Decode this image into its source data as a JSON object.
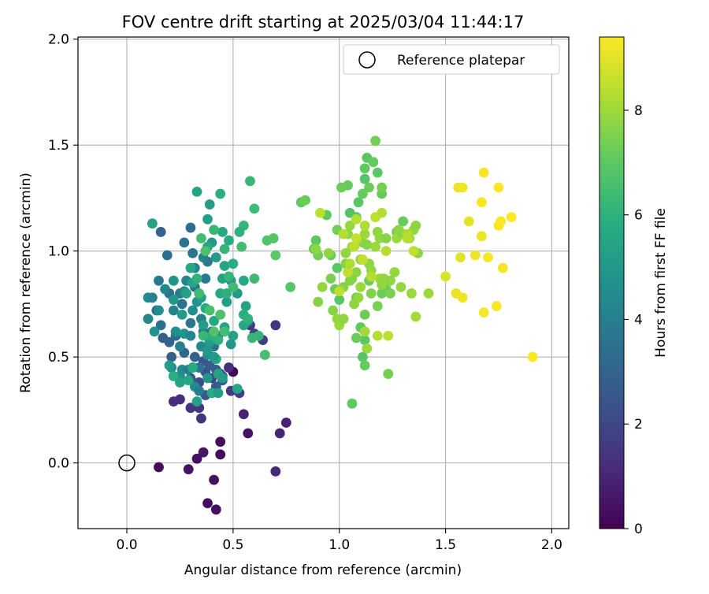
{
  "chart_data": {
    "type": "scatter",
    "title": "FOV centre drift starting at 2025/03/04 11:44:17",
    "xlabel": "Angular distance from reference (arcmin)",
    "ylabel": "Rotation from reference (arcmin)",
    "xlim": [
      -0.23,
      2.08
    ],
    "ylim": [
      -0.31,
      2.01
    ],
    "xticks": [
      0.0,
      0.5,
      1.0,
      1.5,
      2.0
    ],
    "xtick_labels": [
      "0.0",
      "0.5",
      "1.0",
      "1.5",
      "2.0"
    ],
    "yticks": [
      0.0,
      0.5,
      1.0,
      1.5,
      2.0
    ],
    "ytick_labels": [
      "0.0",
      "0.5",
      "1.0",
      "1.5",
      "2.0"
    ],
    "grid": true,
    "legend": {
      "placement": "top-right",
      "entries": [
        "Reference platepar"
      ]
    },
    "reference_point": {
      "x": 0.0,
      "y": 0.0,
      "label": "Reference platepar"
    },
    "colorbar": {
      "label": "Hours from first FF file",
      "range": [
        0,
        9.4
      ],
      "ticks": [
        0,
        2,
        4,
        6,
        8
      ],
      "tick_labels": [
        "0",
        "2",
        "4",
        "6",
        "8"
      ],
      "colormap": "viridis"
    },
    "points": [
      [
        0.15,
        -0.02,
        0.3
      ],
      [
        0.29,
        -0.03,
        0.5
      ],
      [
        0.33,
        0.02,
        0.4
      ],
      [
        0.36,
        0.05,
        0.6
      ],
      [
        0.41,
        -0.08,
        0.4
      ],
      [
        0.38,
        -0.19,
        0.3
      ],
      [
        0.42,
        -0.22,
        0.4
      ],
      [
        0.44,
        0.04,
        0.2
      ],
      [
        0.44,
        0.1,
        0.3
      ],
      [
        0.7,
        -0.04,
        1.1
      ],
      [
        0.57,
        0.14,
        0.5
      ],
      [
        0.72,
        0.14,
        1.0
      ],
      [
        0.75,
        0.19,
        0.9
      ],
      [
        0.55,
        0.23,
        0.9
      ],
      [
        0.5,
        0.43,
        0.1
      ],
      [
        0.22,
        0.29,
        1.2
      ],
      [
        0.25,
        0.3,
        1.3
      ],
      [
        0.3,
        0.26,
        1.5
      ],
      [
        0.34,
        0.26,
        1.5
      ],
      [
        0.35,
        0.21,
        1.4
      ],
      [
        0.48,
        0.45,
        1.3
      ],
      [
        0.49,
        0.34,
        1.6
      ],
      [
        0.53,
        0.33,
        1.7
      ],
      [
        0.7,
        0.65,
        1.5
      ],
      [
        0.64,
        0.58,
        1.8
      ],
      [
        0.6,
        0.61,
        1.9
      ],
      [
        0.58,
        0.65,
        1.6
      ],
      [
        0.37,
        0.43,
        2.4
      ],
      [
        0.4,
        0.4,
        2.0
      ],
      [
        0.44,
        0.42,
        2.2
      ],
      [
        0.45,
        0.41,
        2.6
      ],
      [
        0.45,
        0.39,
        2.5
      ],
      [
        0.31,
        0.45,
        2.3
      ],
      [
        0.34,
        0.38,
        2.1
      ],
      [
        0.37,
        0.32,
        2.5
      ],
      [
        0.42,
        0.36,
        2.7
      ],
      [
        0.39,
        0.46,
        2.8
      ],
      [
        0.42,
        0.44,
        2.8
      ],
      [
        0.3,
        0.4,
        2.6
      ],
      [
        0.36,
        0.48,
        2.5
      ],
      [
        0.16,
        1.09,
        3.0
      ],
      [
        0.3,
        1.11,
        3.3
      ],
      [
        0.27,
        1.04,
        3.6
      ],
      [
        0.19,
        0.98,
        3.5
      ],
      [
        0.31,
        0.99,
        3.7
      ],
      [
        0.15,
        0.86,
        3.8
      ],
      [
        0.2,
        0.8,
        3.4
      ],
      [
        0.25,
        0.8,
        3.9
      ],
      [
        0.14,
        0.72,
        3.3
      ],
      [
        0.16,
        0.65,
        3.5
      ],
      [
        0.17,
        0.59,
        2.9
      ],
      [
        0.2,
        0.57,
        3.0
      ],
      [
        0.23,
        0.6,
        3.2
      ],
      [
        0.21,
        0.5,
        2.9
      ],
      [
        0.27,
        0.52,
        3.2
      ],
      [
        0.32,
        0.5,
        3.0
      ],
      [
        0.34,
        0.45,
        3.6
      ],
      [
        0.38,
        0.55,
        3.3
      ],
      [
        0.4,
        0.62,
        3.4
      ],
      [
        0.36,
        0.62,
        3.9
      ],
      [
        0.3,
        0.66,
        3.8
      ],
      [
        0.26,
        0.75,
        3.6
      ],
      [
        0.32,
        0.83,
        3.7
      ],
      [
        0.37,
        0.87,
        3.9
      ],
      [
        0.38,
        0.95,
        3.8
      ],
      [
        0.41,
        0.55,
        3.5
      ],
      [
        0.43,
        0.6,
        3.8
      ],
      [
        0.1,
        0.78,
        4.5
      ],
      [
        0.12,
        0.78,
        4.2
      ],
      [
        0.13,
        0.62,
        4.8
      ],
      [
        0.1,
        0.68,
        4.4
      ],
      [
        0.15,
        0.72,
        4.6
      ],
      [
        0.18,
        0.82,
        4.3
      ],
      [
        0.22,
        0.86,
        4.9
      ],
      [
        0.22,
        0.72,
        4.2
      ],
      [
        0.23,
        0.62,
        4.7
      ],
      [
        0.25,
        0.55,
        4.1
      ],
      [
        0.27,
        0.61,
        4.9
      ],
      [
        0.3,
        0.6,
        4.3
      ],
      [
        0.31,
        0.72,
        4.6
      ],
      [
        0.33,
        0.76,
        4.8
      ],
      [
        0.35,
        0.68,
        4.1
      ],
      [
        0.35,
        0.55,
        4.4
      ],
      [
        0.38,
        0.51,
        4.7
      ],
      [
        0.27,
        0.81,
        4.5
      ],
      [
        0.28,
        0.86,
        4.3
      ],
      [
        0.32,
        0.92,
        4.1
      ],
      [
        0.36,
        0.97,
        4.2
      ],
      [
        0.26,
        0.44,
        4.4
      ],
      [
        0.29,
        0.44,
        4.1
      ],
      [
        0.32,
        0.36,
        4.6
      ],
      [
        0.34,
        0.34,
        4.0
      ],
      [
        0.38,
        0.4,
        4.9
      ],
      [
        0.22,
        0.41,
        4.5
      ],
      [
        0.21,
        0.45,
        4.4
      ],
      [
        0.25,
        0.41,
        4.6
      ],
      [
        0.12,
        1.13,
        5.4
      ],
      [
        0.33,
        1.28,
        5.5
      ],
      [
        0.39,
        1.22,
        5.2
      ],
      [
        0.38,
        1.15,
        5.3
      ],
      [
        0.44,
        1.27,
        5.9
      ],
      [
        0.45,
        1.09,
        5.6
      ],
      [
        0.48,
        1.05,
        5.8
      ],
      [
        0.4,
        1.04,
        5.1
      ],
      [
        0.38,
        1.02,
        5.6
      ],
      [
        0.42,
        0.97,
        5.2
      ],
      [
        0.46,
        0.93,
        5.5
      ],
      [
        0.5,
        0.94,
        5.9
      ],
      [
        0.45,
        0.87,
        5.4
      ],
      [
        0.44,
        0.8,
        5.7
      ],
      [
        0.47,
        0.76,
        5.3
      ],
      [
        0.52,
        0.8,
        5.1
      ],
      [
        0.49,
        0.86,
        5.0
      ],
      [
        0.55,
        0.86,
        5.7
      ],
      [
        0.56,
        0.74,
        5.5
      ],
      [
        0.55,
        0.7,
        5.9
      ],
      [
        0.57,
        0.67,
        5.2
      ],
      [
        0.55,
        0.65,
        5.6
      ],
      [
        0.5,
        0.6,
        5.4
      ],
      [
        0.49,
        0.56,
        5.0
      ],
      [
        0.46,
        0.64,
        5.5
      ],
      [
        0.41,
        0.67,
        5.6
      ],
      [
        0.39,
        0.57,
        5.3
      ],
      [
        0.42,
        0.49,
        5.8
      ],
      [
        0.41,
        0.5,
        5.1
      ],
      [
        0.43,
        0.42,
        5.5
      ],
      [
        0.45,
        0.4,
        5.2
      ],
      [
        0.38,
        0.53,
        5.0
      ],
      [
        0.4,
        0.6,
        5.9
      ],
      [
        0.36,
        0.65,
        5.2
      ],
      [
        0.37,
        0.73,
        5.8
      ],
      [
        0.35,
        0.78,
        5.3
      ],
      [
        0.31,
        0.85,
        5.5
      ],
      [
        0.3,
        0.92,
        5.7
      ],
      [
        0.28,
        0.8,
        5.4
      ],
      [
        0.26,
        0.7,
        5.1
      ],
      [
        0.22,
        0.77,
        5.0
      ],
      [
        0.2,
        0.46,
        5.2
      ],
      [
        0.22,
        0.41,
        5.9
      ],
      [
        0.25,
        0.38,
        5.5
      ],
      [
        0.29,
        0.39,
        5.7
      ],
      [
        0.33,
        0.29,
        5.4
      ],
      [
        0.4,
        0.33,
        5.8
      ],
      [
        0.43,
        0.33,
        5.3
      ],
      [
        0.31,
        0.45,
        5.8
      ],
      [
        0.52,
        0.35,
        5.6
      ],
      [
        0.58,
        1.33,
        6.3
      ],
      [
        0.6,
        1.2,
        6.4
      ],
      [
        0.55,
        1.12,
        6.2
      ],
      [
        0.53,
        1.09,
        6.0
      ],
      [
        0.54,
        1.02,
        6.5
      ],
      [
        0.6,
        0.87,
        6.4
      ],
      [
        0.62,
        0.6,
        6.2
      ],
      [
        0.57,
        0.68,
        6.1
      ],
      [
        0.65,
        0.51,
        6.6
      ],
      [
        0.66,
        1.05,
        6.8
      ],
      [
        0.69,
        1.06,
        6.9
      ],
      [
        0.7,
        0.98,
        7.0
      ],
      [
        0.59,
        0.59,
        6.3
      ],
      [
        0.48,
        0.88,
        6.2
      ],
      [
        0.5,
        0.83,
        6.4
      ],
      [
        0.47,
        0.8,
        6.0
      ],
      [
        0.44,
        0.7,
        6.7
      ],
      [
        0.46,
        0.62,
        6.5
      ],
      [
        0.43,
        0.58,
        6.1
      ],
      [
        0.41,
        0.62,
        6.8
      ],
      [
        0.36,
        0.6,
        6.3
      ],
      [
        0.39,
        0.72,
        6.6
      ],
      [
        0.34,
        0.8,
        6.4
      ],
      [
        0.33,
        0.87,
        6.1
      ],
      [
        0.37,
        1.0,
        6.7
      ],
      [
        0.35,
        1.06,
        6.5
      ],
      [
        0.41,
        1.1,
        6.3
      ],
      [
        0.46,
        1.01,
        6.2
      ],
      [
        0.82,
        1.23,
        7.1
      ],
      [
        0.84,
        1.24,
        7.3
      ],
      [
        0.77,
        0.83,
        6.9
      ],
      [
        0.89,
        1.05,
        7.0
      ],
      [
        0.88,
        1.01,
        7.2
      ],
      [
        0.9,
        0.98,
        7.4
      ],
      [
        0.94,
        1.17,
        7.1
      ],
      [
        0.96,
        0.98,
        7.2
      ],
      [
        0.96,
        0.87,
        7.5
      ],
      [
        0.98,
        0.82,
        7.3
      ],
      [
        1.0,
        0.77,
        6.9
      ],
      [
        0.99,
        0.92,
        7.0
      ],
      [
        0.99,
        1.1,
        7.4
      ],
      [
        1.01,
        1.3,
        7.3
      ],
      [
        1.04,
        1.31,
        7.2
      ],
      [
        1.05,
        1.18,
        6.8
      ],
      [
        1.08,
        1.16,
        6.9
      ],
      [
        1.09,
        1.23,
        7.0
      ],
      [
        1.11,
        1.27,
        7.2
      ],
      [
        1.12,
        1.34,
        6.9
      ],
      [
        1.12,
        1.39,
        7.1
      ],
      [
        1.13,
        1.44,
        7.0
      ],
      [
        1.14,
        1.3,
        7.3
      ],
      [
        1.16,
        1.42,
        7.2
      ],
      [
        1.17,
        1.52,
        7.4
      ],
      [
        1.2,
        1.27,
        7.2
      ],
      [
        1.18,
        1.37,
        7.0
      ],
      [
        1.2,
        1.3,
        7.4
      ],
      [
        1.12,
        0.7,
        7.3
      ],
      [
        1.1,
        0.64,
        7.1
      ],
      [
        1.12,
        0.58,
        7.0
      ],
      [
        1.08,
        0.59,
        7.3
      ],
      [
        1.11,
        0.5,
        6.9
      ],
      [
        1.12,
        0.46,
        7.2
      ],
      [
        1.06,
        0.28,
        7.1
      ],
      [
        1.23,
        0.42,
        7.4
      ],
      [
        1.2,
        0.8,
        7.3
      ],
      [
        1.22,
        0.82,
        7.2
      ],
      [
        1.24,
        0.8,
        7.5
      ],
      [
        1.3,
        1.14,
        7.2
      ],
      [
        1.27,
        1.09,
        7.4
      ],
      [
        1.09,
        1.05,
        7.3
      ],
      [
        1.15,
        0.8,
        7.6
      ],
      [
        1.08,
        0.78,
        7.4
      ],
      [
        1.14,
        0.86,
        7.3
      ],
      [
        1.18,
        0.74,
        7.5
      ],
      [
        1.05,
        0.86,
        7.6
      ],
      [
        1.03,
        0.94,
        7.7
      ],
      [
        1.08,
        0.9,
        7.8
      ],
      [
        0.89,
        1.01,
        7.8
      ],
      [
        0.9,
        0.76,
        7.7
      ],
      [
        0.92,
        0.83,
        7.9
      ],
      [
        0.95,
        0.99,
        7.8
      ],
      [
        0.97,
        0.72,
        7.7
      ],
      [
        0.99,
        0.68,
        7.9
      ],
      [
        1.0,
        0.65,
        8.0
      ],
      [
        1.02,
        0.68,
        7.8
      ],
      [
        1.02,
        0.83,
        7.7
      ],
      [
        1.03,
        0.99,
        7.9
      ],
      [
        1.04,
        1.08,
        7.8
      ],
      [
        1.05,
        1.12,
        7.9
      ],
      [
        1.06,
        1.02,
        8.0
      ],
      [
        1.06,
        0.87,
        7.7
      ],
      [
        1.07,
        0.75,
        7.8
      ],
      [
        1.09,
        0.78,
        7.9
      ],
      [
        1.1,
        0.83,
        8.0
      ],
      [
        1.1,
        0.96,
        7.8
      ],
      [
        1.11,
        1.04,
        7.9
      ],
      [
        1.12,
        1.08,
        8.0
      ],
      [
        1.13,
        1.03,
        7.7
      ],
      [
        1.14,
        0.94,
        7.8
      ],
      [
        1.15,
        0.91,
        7.9
      ],
      [
        1.17,
        1.02,
        8.0
      ],
      [
        1.18,
        1.09,
        7.8
      ],
      [
        1.19,
        1.06,
        7.9
      ],
      [
        1.19,
        0.87,
        8.0
      ],
      [
        1.2,
        0.84,
        7.8
      ],
      [
        1.21,
        0.87,
        7.9
      ],
      [
        1.22,
        1.06,
        7.7
      ],
      [
        1.24,
        0.86,
        7.8
      ],
      [
        1.26,
        0.9,
        7.9
      ],
      [
        1.27,
        1.06,
        8.0
      ],
      [
        1.28,
        1.1,
        7.8
      ],
      [
        1.29,
        0.83,
        7.9
      ],
      [
        1.3,
        1.08,
        7.8
      ],
      [
        1.33,
        1.06,
        8.0
      ],
      [
        1.35,
        1.1,
        7.9
      ],
      [
        1.36,
        1.12,
        7.8
      ],
      [
        1.34,
        0.8,
        8.0
      ],
      [
        1.37,
        0.99,
        7.8
      ],
      [
        1.36,
        0.69,
        8.1
      ],
      [
        1.42,
        0.8,
        8.0
      ],
      [
        1.13,
        0.54,
        8.0
      ],
      [
        1.12,
        0.62,
        8.1
      ],
      [
        0.91,
        1.18,
        8.5
      ],
      [
        1.02,
        1.08,
        8.4
      ],
      [
        1.04,
        0.9,
        8.5
      ],
      [
        1.05,
        0.94,
        8.3
      ],
      [
        1.08,
        1.15,
        8.4
      ],
      [
        1.12,
        1.12,
        8.3
      ],
      [
        1.15,
        0.88,
        8.4
      ],
      [
        1.17,
        1.16,
        8.5
      ],
      [
        1.2,
        1.18,
        8.4
      ],
      [
        1.23,
        0.6,
        8.5
      ],
      [
        1.18,
        0.6,
        8.4
      ],
      [
        1.0,
        0.81,
        8.5
      ],
      [
        1.08,
        1.06,
        8.6
      ],
      [
        1.32,
        1.08,
        8.3
      ],
      [
        1.35,
        1.0,
        8.5
      ],
      [
        1.32,
        1.06,
        8.4
      ],
      [
        1.22,
        1.0,
        8.4
      ],
      [
        1.11,
        0.96,
        8.6
      ],
      [
        1.07,
        1.02,
        8.5
      ],
      [
        1.5,
        0.88,
        8.9
      ],
      [
        1.57,
        0.97,
        9.0
      ],
      [
        1.55,
        0.8,
        9.1
      ],
      [
        1.58,
        0.78,
        9.2
      ],
      [
        1.56,
        1.3,
        9.1
      ],
      [
        1.58,
        1.3,
        9.2
      ],
      [
        1.61,
        1.14,
        9.0
      ],
      [
        1.64,
        0.98,
        9.2
      ],
      [
        1.67,
        1.07,
        9.2
      ],
      [
        1.67,
        1.23,
        9.3
      ],
      [
        1.68,
        1.37,
        9.3
      ],
      [
        1.68,
        0.71,
        9.3
      ],
      [
        1.7,
        0.97,
        9.3
      ],
      [
        1.74,
        0.74,
        9.3
      ],
      [
        1.75,
        1.12,
        9.3
      ],
      [
        1.75,
        1.3,
        9.4
      ],
      [
        1.77,
        0.92,
        9.3
      ],
      [
        1.76,
        1.14,
        9.4
      ],
      [
        1.81,
        1.16,
        9.4
      ],
      [
        1.91,
        0.5,
        9.4
      ]
    ]
  }
}
